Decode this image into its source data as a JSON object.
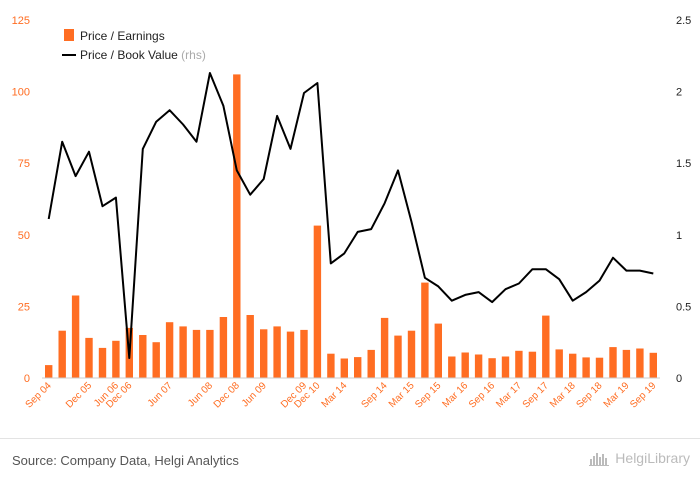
{
  "colors": {
    "bar": "#ff6d22",
    "line": "#000000",
    "tick_left": "#ff6d22",
    "tick_right": "#222222"
  },
  "legend": {
    "bar_label": "Price / Earnings",
    "line_label": "Price / Book Value",
    "rhs_tag": "(rhs)"
  },
  "footer": {
    "source": "Source: Company Data, Helgi Analytics",
    "brand": "HelgiLibrary"
  },
  "chart_data": {
    "type": "bar+line",
    "grid": false,
    "legend_position": "top-left",
    "y_left": {
      "ticks": [
        "0",
        "25",
        "50",
        "75",
        "100",
        "125"
      ],
      "range": [
        0,
        125
      ]
    },
    "y_right": {
      "ticks": [
        "0",
        "0.5",
        "1",
        "1.5",
        "2",
        "2.5"
      ],
      "range": [
        0,
        2.5
      ]
    },
    "x_tick_labels": [
      "Sep 04",
      "Dec 05",
      "Jun 06",
      "Dec 06",
      "Jun 07",
      "Jun 08",
      "Dec 08",
      "Jun 09",
      "Dec 09",
      "Dec 10",
      "Mar 14",
      "Sep 14",
      "Mar 15",
      "Sep 15",
      "Mar 16",
      "Sep 16",
      "Mar 17",
      "Sep 17",
      "Mar 18",
      "Sep 18",
      "Mar 19",
      "Sep 19"
    ],
    "x_tick_positions": [
      0,
      3,
      5,
      6,
      9,
      12,
      14,
      16,
      19,
      20,
      22,
      25,
      27,
      29,
      31,
      33,
      35,
      37,
      39,
      41,
      43,
      45
    ],
    "series": [
      {
        "name": "Price / Earnings",
        "axis": "left",
        "kind": "bar",
        "values": [
          4.5,
          16.5,
          28.8,
          14,
          10.5,
          13,
          17.5,
          15,
          12.5,
          19.5,
          18,
          16.8,
          16.8,
          21.3,
          106,
          22,
          17,
          18,
          16.2,
          16.8,
          53.2,
          8.5,
          6.8,
          7.3,
          9.8,
          21,
          14.8,
          16.5,
          33.3,
          19,
          7.5,
          8.9,
          8.2,
          6.9,
          7.5,
          9.5,
          9.2,
          21.8,
          10,
          8.5,
          7.2,
          7.1,
          10.8,
          9.8,
          10.3,
          8.8
        ]
      },
      {
        "name": "Price / Book Value",
        "axis": "right",
        "kind": "line",
        "values": [
          1.11,
          1.65,
          1.41,
          1.58,
          1.2,
          1.26,
          0.14,
          1.6,
          1.79,
          1.87,
          1.77,
          1.65,
          2.13,
          1.9,
          1.45,
          1.28,
          1.39,
          1.83,
          1.6,
          1.99,
          2.06,
          0.8,
          0.87,
          1.02,
          1.04,
          1.22,
          1.45,
          1.09,
          0.7,
          0.64,
          0.54,
          0.58,
          0.6,
          0.53,
          0.62,
          0.66,
          0.76,
          0.76,
          0.69,
          0.54,
          0.6,
          0.68,
          0.84,
          0.75,
          0.75,
          0.73
        ]
      }
    ]
  }
}
